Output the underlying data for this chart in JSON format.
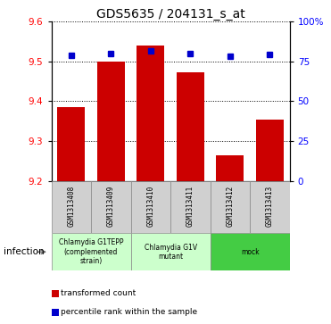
{
  "title": "GDS5635 / 204131_s_at",
  "samples": [
    "GSM1313408",
    "GSM1313409",
    "GSM1313410",
    "GSM1313411",
    "GSM1313412",
    "GSM1313413"
  ],
  "bar_values": [
    9.385,
    9.5,
    9.54,
    9.473,
    9.265,
    9.355
  ],
  "percentile_values": [
    9.515,
    9.52,
    9.525,
    9.518,
    9.512,
    9.516
  ],
  "ylim_left": [
    9.2,
    9.6
  ],
  "ylim_right": [
    0,
    100
  ],
  "yticks_left": [
    9.2,
    9.3,
    9.4,
    9.5,
    9.6
  ],
  "yticks_right": [
    0,
    25,
    50,
    75,
    100
  ],
  "bar_color": "#cc0000",
  "dot_color": "#0000cc",
  "bar_width": 0.7,
  "group_labels": [
    "Chlamydia G1TEPP\n(complemented\nstrain)",
    "Chlamydia G1V\nmutant",
    "mock"
  ],
  "group_ranges": [
    [
      0,
      1
    ],
    [
      2,
      3
    ],
    [
      4,
      5
    ]
  ],
  "group_colors": [
    "#ccffcc",
    "#ccffcc",
    "#44cc44"
  ],
  "factor_label": "infection",
  "legend_bar_label": "transformed count",
  "legend_dot_label": "percentile rank within the sample",
  "sample_box_color": "#d0d0d0"
}
